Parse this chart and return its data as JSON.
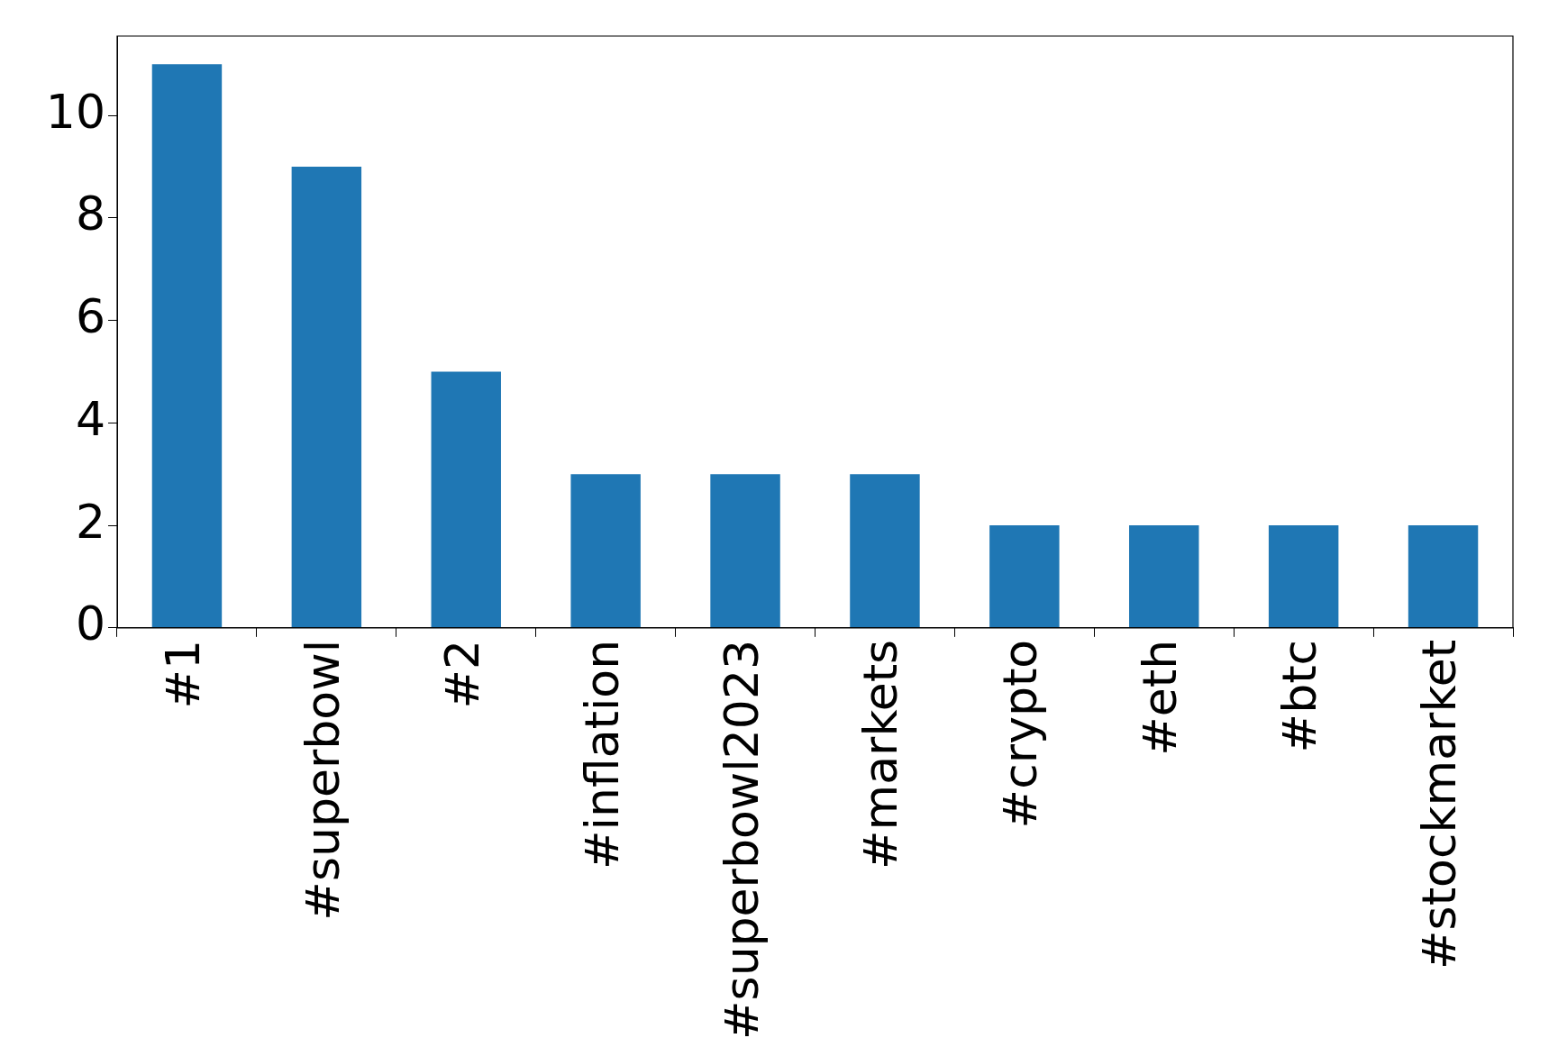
{
  "chart_data": {
    "type": "bar",
    "categories": [
      "#1",
      "#superbowl",
      "#2",
      "#inflation",
      "#superbowl2023",
      "#markets",
      "#crypto",
      "#eth",
      "#btc",
      "#stockmarket"
    ],
    "values": [
      11,
      9,
      5,
      3,
      3,
      3,
      2,
      2,
      2,
      2
    ],
    "color": "#1f77b4",
    "ylim": [
      0,
      11.55
    ],
    "yticks": [
      0,
      2,
      4,
      6,
      8,
      10
    ],
    "grid": false,
    "legend": false
  }
}
